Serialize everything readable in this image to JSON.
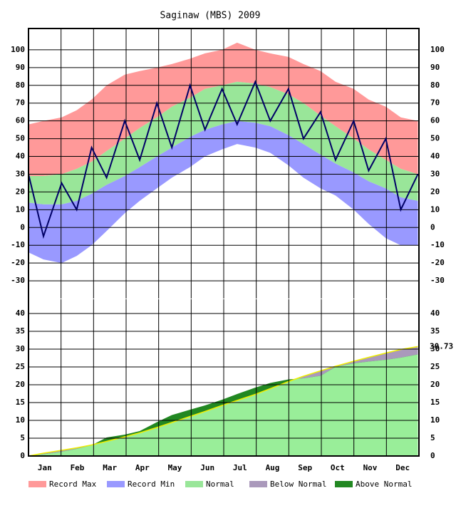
{
  "chart_data": [
    {
      "type": "temperature",
      "title": "Saginaw (MBS) 2009",
      "x": [
        1,
        15,
        32,
        46,
        60,
        74,
        91,
        105,
        121,
        135,
        152,
        166,
        182,
        196,
        213,
        227,
        244,
        258,
        274,
        288,
        305,
        319,
        335,
        349,
        365
      ],
      "xlim": [
        1,
        366
      ],
      "ylim": [
        -40,
        112
      ],
      "yticks": [
        -30,
        -20,
        -10,
        0,
        10,
        20,
        30,
        40,
        50,
        60,
        70,
        80,
        90,
        100
      ],
      "grid": true,
      "series": [
        {
          "name": "Record Max",
          "color": "#ff9999",
          "values": [
            58,
            60,
            62,
            66,
            72,
            80,
            86,
            88,
            90,
            92,
            95,
            98,
            100,
            104,
            100,
            98,
            96,
            92,
            88,
            82,
            78,
            72,
            68,
            62,
            60
          ]
        },
        {
          "name": "Record Min",
          "color": "#9999ff",
          "values": [
            -14,
            -18,
            -20,
            -16,
            -10,
            -2,
            8,
            15,
            22,
            28,
            34,
            40,
            44,
            47,
            45,
            42,
            35,
            28,
            22,
            18,
            10,
            2,
            -6,
            -10,
            -10
          ]
        },
        {
          "name": "Normal",
          "color": "#99e699",
          "values": [
            29,
            29,
            30,
            33,
            37,
            43,
            50,
            56,
            62,
            68,
            73,
            78,
            80,
            82,
            81,
            79,
            75,
            70,
            63,
            57,
            50,
            44,
            38,
            33,
            30
          ],
          "low": [
            14,
            13,
            13,
            15,
            19,
            24,
            29,
            34,
            40,
            45,
            51,
            55,
            58,
            60,
            59,
            57,
            52,
            47,
            41,
            36,
            31,
            26,
            22,
            17,
            15
          ]
        },
        {
          "color": "#000066",
          "values": [
            30,
            -5,
            25,
            10,
            45,
            28,
            60,
            38,
            70,
            45,
            80,
            55,
            78,
            58,
            82,
            60,
            78,
            50,
            65,
            38,
            60,
            32,
            50,
            10,
            30
          ]
        }
      ]
    },
    {
      "type": "precipitation",
      "x": [
        1,
        15,
        32,
        46,
        60,
        74,
        91,
        105,
        121,
        135,
        152,
        166,
        182,
        196,
        213,
        227,
        244,
        258,
        274,
        288,
        305,
        319,
        335,
        349,
        365
      ],
      "xlim": [
        1,
        366
      ],
      "categories": [
        "Jan",
        "Feb",
        "Mar",
        "Apr",
        "May",
        "Jun",
        "Jul",
        "Aug",
        "Sep",
        "Oct",
        "Nov",
        "Dec"
      ],
      "ylim": [
        0,
        44
      ],
      "yticks": [
        0,
        5,
        10,
        15,
        20,
        25,
        30,
        35,
        40
      ],
      "grid": true,
      "normal": {
        "color": "#99ee99",
        "line_color": "#eeee00",
        "values": [
          0,
          0.8,
          1.6,
          2.3,
          3.1,
          4.1,
          5.4,
          6.5,
          8.0,
          9.4,
          11.1,
          12.5,
          14.2,
          15.6,
          17.3,
          18.9,
          20.9,
          22.4,
          23.9,
          25.2,
          26.6,
          27.7,
          28.9,
          29.9,
          30.73
        ]
      },
      "actual": {
        "values": [
          0,
          0.5,
          1.2,
          2.0,
          3.0,
          5.2,
          6.0,
          7.0,
          9.5,
          11.5,
          13.0,
          14.2,
          15.8,
          17.4,
          19.2,
          20.5,
          21.5,
          21.8,
          22.5,
          25.0,
          26.0,
          26.5,
          27.0,
          27.6,
          28.5
        ]
      },
      "fills": [
        {
          "name": "Below Normal",
          "color": "#aa99bb"
        },
        {
          "name": "Above Normal",
          "color": "#228822"
        }
      ]
    }
  ]
}
